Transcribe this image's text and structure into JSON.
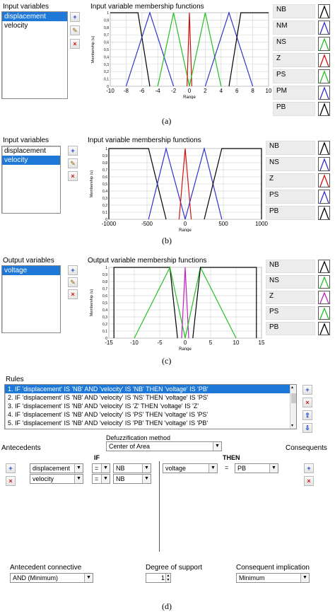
{
  "panel_a": {
    "list_title": "Input variables",
    "items": [
      "displacement",
      "velocity"
    ],
    "selected_index": 0,
    "chart_title": "Input variable membership functions",
    "mfs": [
      {
        "name": "NB",
        "color": "#000000"
      },
      {
        "name": "NM",
        "color": "#3030d0"
      },
      {
        "name": "NS",
        "color": "#22c022"
      },
      {
        "name": "Z",
        "color": "#d01010"
      },
      {
        "name": "PS",
        "color": "#22c022"
      },
      {
        "name": "PM",
        "color": "#3030d0"
      },
      {
        "name": "PB",
        "color": "#000000"
      }
    ],
    "caption": "(a)"
  },
  "panel_b": {
    "list_title": "Input variables",
    "items": [
      "displacement",
      "velocity"
    ],
    "selected_index": 1,
    "chart_title": "Input variable membership functions",
    "mfs": [
      {
        "name": "NB",
        "color": "#000000"
      },
      {
        "name": "NS",
        "color": "#3030d0"
      },
      {
        "name": "Z",
        "color": "#d01010"
      },
      {
        "name": "PS",
        "color": "#3030d0"
      },
      {
        "name": "PB",
        "color": "#000000"
      }
    ],
    "caption": "(b)"
  },
  "panel_c": {
    "list_title": "Output variables",
    "items": [
      "voltage"
    ],
    "selected_index": 0,
    "chart_title": "Output variable membership functions",
    "mfs": [
      {
        "name": "NB",
        "color": "#000000"
      },
      {
        "name": "NS",
        "color": "#22c022"
      },
      {
        "name": "Z",
        "color": "#c020c0"
      },
      {
        "name": "PS",
        "color": "#22c022"
      },
      {
        "name": "PB",
        "color": "#000000"
      }
    ],
    "caption": "(c)"
  },
  "chart_data": [
    {
      "type": "line",
      "ylabel": "Membership (u)",
      "xlabel": "Range",
      "xlim": [
        -10,
        10
      ],
      "ylim": [
        0,
        1
      ],
      "xticks": [
        "-10",
        "-8",
        "-6",
        "-4",
        "-2",
        "0",
        "2",
        "4",
        "6",
        "8",
        "10"
      ],
      "yticks": [
        "0",
        "0,1",
        "0,2",
        "0,3",
        "0,4",
        "0,5",
        "0,6",
        "0,7",
        "0,8",
        "0,9",
        "1"
      ],
      "grid": true,
      "series": [
        {
          "name": "NB",
          "color": "#000000",
          "points": [
            [
              -10,
              1
            ],
            [
              -6.5,
              1
            ],
            [
              -5,
              0
            ]
          ]
        },
        {
          "name": "NM",
          "color": "#3030d0",
          "points": [
            [
              -8,
              0
            ],
            [
              -5,
              1
            ],
            [
              -2,
              0
            ]
          ]
        },
        {
          "name": "NS",
          "color": "#22c022",
          "points": [
            [
              -4,
              0
            ],
            [
              -2,
              1
            ],
            [
              0,
              0
            ]
          ]
        },
        {
          "name": "Z",
          "color": "#d01010",
          "points": [
            [
              -0.3,
              0
            ],
            [
              0,
              1
            ],
            [
              0.3,
              0
            ]
          ]
        },
        {
          "name": "PS",
          "color": "#22c022",
          "points": [
            [
              0,
              0
            ],
            [
              2,
              1
            ],
            [
              4,
              0
            ]
          ]
        },
        {
          "name": "PM",
          "color": "#3030d0",
          "points": [
            [
              2,
              0
            ],
            [
              5,
              1
            ],
            [
              8,
              0
            ]
          ]
        },
        {
          "name": "PB",
          "color": "#000000",
          "points": [
            [
              5,
              0
            ],
            [
              6.5,
              1
            ],
            [
              10,
              1
            ]
          ]
        }
      ]
    },
    {
      "type": "line",
      "ylabel": "Membership (u)",
      "xlabel": "Range",
      "xlim": [
        -1000,
        1000
      ],
      "ylim": [
        0,
        1
      ],
      "xticks": [
        "-1000",
        "-500",
        "0",
        "500",
        "1000"
      ],
      "yticks": [
        "0",
        "0,1",
        "0,2",
        "0,3",
        "0,4",
        "0,5",
        "0,6",
        "0,7",
        "0,8",
        "0,9",
        "1"
      ],
      "grid": true,
      "series": [
        {
          "name": "NB",
          "color": "#000000",
          "points": [
            [
              -1000,
              0
            ],
            [
              -1000,
              1
            ],
            [
              -480,
              1
            ],
            [
              -250,
              0
            ]
          ]
        },
        {
          "name": "NS",
          "color": "#3030d0",
          "points": [
            [
              -480,
              0
            ],
            [
              -250,
              1
            ],
            [
              0,
              0
            ]
          ]
        },
        {
          "name": "Z",
          "color": "#d01010",
          "points": [
            [
              -80,
              0
            ],
            [
              0,
              1
            ],
            [
              80,
              0
            ]
          ]
        },
        {
          "name": "PS",
          "color": "#3030d0",
          "points": [
            [
              0,
              0
            ],
            [
              250,
              1
            ],
            [
              480,
              0
            ]
          ]
        },
        {
          "name": "PB",
          "color": "#000000",
          "points": [
            [
              250,
              0
            ],
            [
              480,
              1
            ],
            [
              1000,
              1
            ],
            [
              1000,
              0
            ]
          ]
        }
      ]
    },
    {
      "type": "line",
      "ylabel": "Membership (u)",
      "xlabel": "Range",
      "xlim": [
        -15,
        15
      ],
      "ylim": [
        0,
        1
      ],
      "xticks": [
        "-15",
        "-10",
        "-5",
        "0",
        "5",
        "10",
        "15"
      ],
      "yticks": [
        "0",
        "0,1",
        "0,2",
        "0,3",
        "0,4",
        "0,5",
        "0,6",
        "0,7",
        "0,8",
        "0,9",
        "1"
      ],
      "grid": true,
      "series": [
        {
          "name": "NB",
          "color": "#000000",
          "points": [
            [
              -14,
              0
            ],
            [
              -14,
              1
            ],
            [
              -3,
              1
            ],
            [
              -1.5,
              0
            ]
          ]
        },
        {
          "name": "NS",
          "color": "#22c022",
          "points": [
            [
              -10,
              0
            ],
            [
              -3,
              1
            ],
            [
              0,
              0
            ]
          ]
        },
        {
          "name": "Z",
          "color": "#c020c0",
          "points": [
            [
              -0.7,
              0
            ],
            [
              0,
              1
            ],
            [
              0.7,
              0
            ]
          ]
        },
        {
          "name": "PS",
          "color": "#22c022",
          "points": [
            [
              0,
              0
            ],
            [
              3,
              1
            ],
            [
              10,
              0
            ]
          ]
        },
        {
          "name": "PB",
          "color": "#000000",
          "points": [
            [
              1.5,
              0
            ],
            [
              3,
              1
            ],
            [
              14,
              1
            ],
            [
              14,
              0
            ]
          ]
        }
      ]
    }
  ],
  "rules_panel": {
    "title": "Rules",
    "rules": [
      "1. IF 'displacement' IS 'NB' AND 'velocity' IS 'NB' THEN 'voltage' IS 'PB'",
      "2. IF 'displacement' IS 'NB' AND 'velocity' IS 'NS' THEN 'voltage' IS 'PS'",
      "3. IF 'displacement' IS 'NB' AND 'velocity' IS 'Z' THEN 'voltage' IS 'Z'",
      "4. IF 'displacement' IS 'NB' AND 'velocity' IS 'PS' THEN 'voltage' IS 'PS'",
      "5. IF 'displacement' IS 'NB' AND 'velocity' IS 'PB' THEN 'voltage' IS 'PB'"
    ],
    "selected_index": 0,
    "antecedents_label": "Antecedents",
    "consequents_label": "Consequents",
    "defuzz_label": "Defuzzification method",
    "defuzz_value": "Center of Area",
    "if_label": "IF",
    "then_label": "THEN",
    "antecedent_vars": [
      "displacement",
      "velocity"
    ],
    "antecedent_ops": [
      "=",
      "="
    ],
    "antecedent_mfs": [
      "NB",
      "NB"
    ],
    "consequent_var": "voltage",
    "consequent_op": "=",
    "consequent_mf": "PB",
    "antecedent_connective_label": "Antecedent connective",
    "antecedent_connective_value": "AND (Minimum)",
    "degree_label": "Degree of support",
    "degree_value": "1",
    "consequent_implication_label": "Consequent implication",
    "consequent_implication_value": "Minimum",
    "caption": "(d)"
  }
}
